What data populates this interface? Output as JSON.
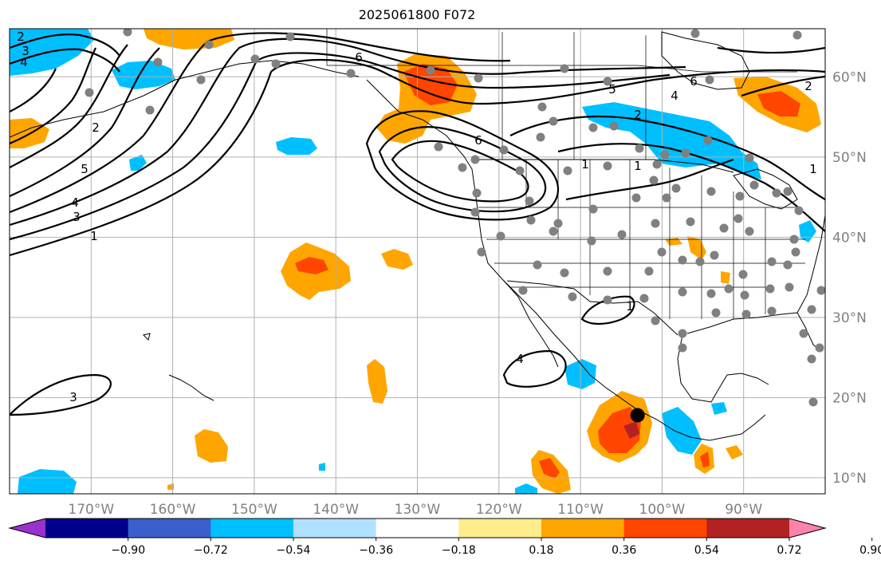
{
  "title": "2025061800 F072",
  "map": {
    "lon_range": [
      -180,
      -80
    ],
    "lat_range": [
      8,
      66
    ],
    "lon_labels": [
      "170°W",
      "160°W",
      "150°W",
      "140°W",
      "130°W",
      "120°W",
      "110°W",
      "100°W",
      "90°W"
    ],
    "lat_labels": [
      "60°N",
      "50°N",
      "40°N",
      "30°N",
      "20°N",
      "10°N"
    ],
    "grid": true,
    "contour_color": "#000000",
    "station_color": "#808080",
    "highlight_point": {
      "lon": -103.0,
      "lat": 17.8,
      "color": "#000000"
    },
    "contour_labels": [
      "2",
      "3",
      "4",
      "6",
      "2",
      "5",
      "4",
      "3",
      "1",
      "6",
      "5",
      "6",
      "4",
      "2",
      "2",
      "1",
      "1",
      "1",
      "4",
      "3",
      "1"
    ]
  },
  "colorbar": {
    "ticks": [
      "−0.90",
      "−0.72",
      "−0.54",
      "−0.36",
      "−0.18",
      "0.18",
      "0.36",
      "0.54",
      "0.72",
      "0.90"
    ],
    "colors": [
      "#9932cc",
      "#00008b",
      "#3a5fcd",
      "#00bfff",
      "#b0e2ff",
      "#ffffff",
      "#ffec8b",
      "#ffa500",
      "#ff4500",
      "#b22222",
      "#ff82ab"
    ]
  }
}
